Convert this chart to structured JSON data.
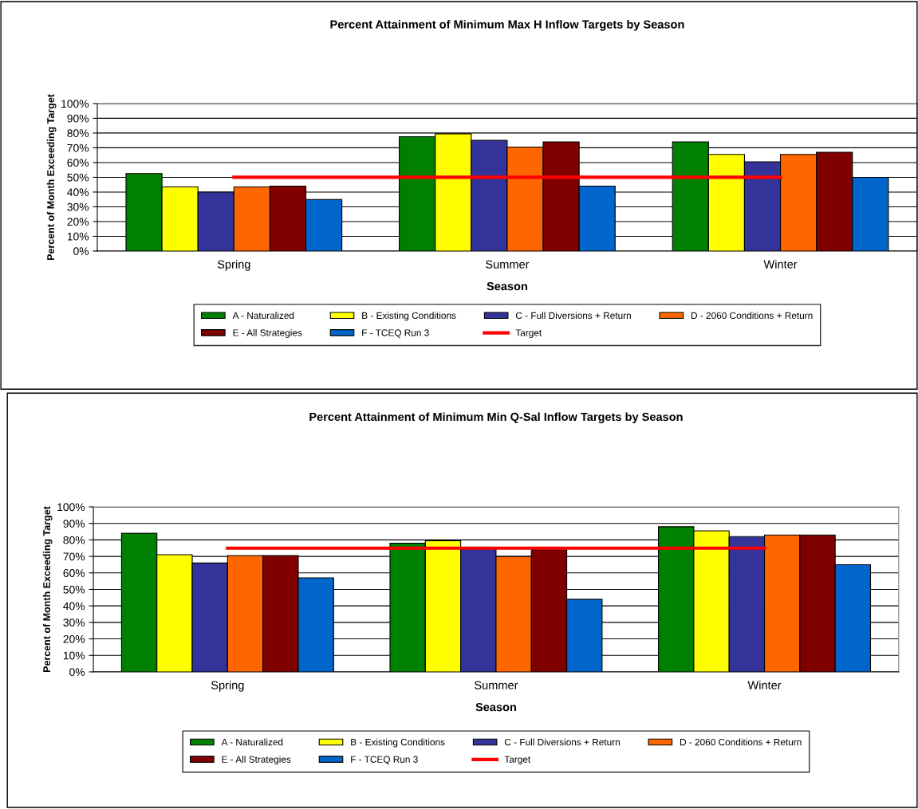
{
  "chart_data": [
    {
      "type": "bar",
      "title": "Percent Attainment of Minimum Max H Inflow Targets by Season",
      "xlabel": "Season",
      "ylabel": "Percent of Month Exceeding Target",
      "categories": [
        "Spring",
        "Summer",
        "Winter"
      ],
      "series": [
        {
          "name": "A - Naturalized",
          "color": "#008000",
          "values": [
            52.5,
            77.5,
            74
          ]
        },
        {
          "name": "B - Existing Conditions",
          "color": "#ffff00",
          "values": [
            43.5,
            79.5,
            65.5
          ]
        },
        {
          "name": "C - Full Diversions + Return",
          "color": "#333399",
          "values": [
            40,
            75,
            60.5
          ]
        },
        {
          "name": "D - 2060 Conditions + Return",
          "color": "#ff6600",
          "values": [
            43.5,
            70.5,
            65.5
          ]
        },
        {
          "name": "E - All Strategies",
          "color": "#800000",
          "values": [
            44,
            74,
            67
          ]
        },
        {
          "name": "F - TCEQ Run 3",
          "color": "#0066cc",
          "values": [
            35,
            44,
            50
          ]
        },
        {
          "name": "Target",
          "color": "#ff0000",
          "type": "line",
          "values": [
            50,
            50,
            50
          ]
        }
      ],
      "ylim": [
        0,
        100
      ],
      "yticks": [
        {
          "value": 0,
          "label": "0%"
        },
        {
          "value": 10,
          "label": "10%"
        },
        {
          "value": 20,
          "label": "20%"
        },
        {
          "value": 30,
          "label": "30%"
        },
        {
          "value": 40,
          "label": "40%"
        },
        {
          "value": 50,
          "label": "50%"
        },
        {
          "value": 60,
          "label": "60%"
        },
        {
          "value": 70,
          "label": "70%"
        },
        {
          "value": 80,
          "label": "80%"
        },
        {
          "value": 90,
          "label": "90%"
        },
        {
          "value": 100,
          "label": "100%"
        }
      ],
      "grid": "y",
      "legend": "bottom"
    },
    {
      "type": "bar",
      "title": "Percent Attainment of Minimum Min Q-Sal Inflow Targets by Season",
      "xlabel": "Season",
      "ylabel": "Percent of Month Exceeding Target",
      "categories": [
        "Spring",
        "Summer",
        "Winter"
      ],
      "series": [
        {
          "name": "A - Naturalized",
          "color": "#008000",
          "values": [
            84,
            78,
            88
          ]
        },
        {
          "name": "B - Existing Conditions",
          "color": "#ffff00",
          "values": [
            71,
            79.5,
            85.5
          ]
        },
        {
          "name": "C - Full Diversions + Return",
          "color": "#333399",
          "values": [
            66,
            75.5,
            82
          ]
        },
        {
          "name": "D - 2060 Conditions + Return",
          "color": "#ff6600",
          "values": [
            70.5,
            70,
            83
          ]
        },
        {
          "name": "E - All Strategies",
          "color": "#800000",
          "values": [
            70.5,
            74,
            83
          ]
        },
        {
          "name": "F - TCEQ Run 3",
          "color": "#0066cc",
          "values": [
            57,
            44,
            65
          ]
        },
        {
          "name": "Target",
          "color": "#ff0000",
          "type": "line",
          "values": [
            75,
            75,
            75
          ]
        }
      ],
      "ylim": [
        0,
        100
      ],
      "yticks": [
        {
          "value": 0,
          "label": "0%"
        },
        {
          "value": 10,
          "label": "10%"
        },
        {
          "value": 20,
          "label": "20%"
        },
        {
          "value": 30,
          "label": "30%"
        },
        {
          "value": 40,
          "label": "40%"
        },
        {
          "value": 50,
          "label": "50%"
        },
        {
          "value": 60,
          "label": "60%"
        },
        {
          "value": 70,
          "label": "70%"
        },
        {
          "value": 80,
          "label": "80%"
        },
        {
          "value": 90,
          "label": "90%"
        },
        {
          "value": 100,
          "label": "100%"
        }
      ],
      "grid": "y",
      "legend": "bottom"
    }
  ]
}
